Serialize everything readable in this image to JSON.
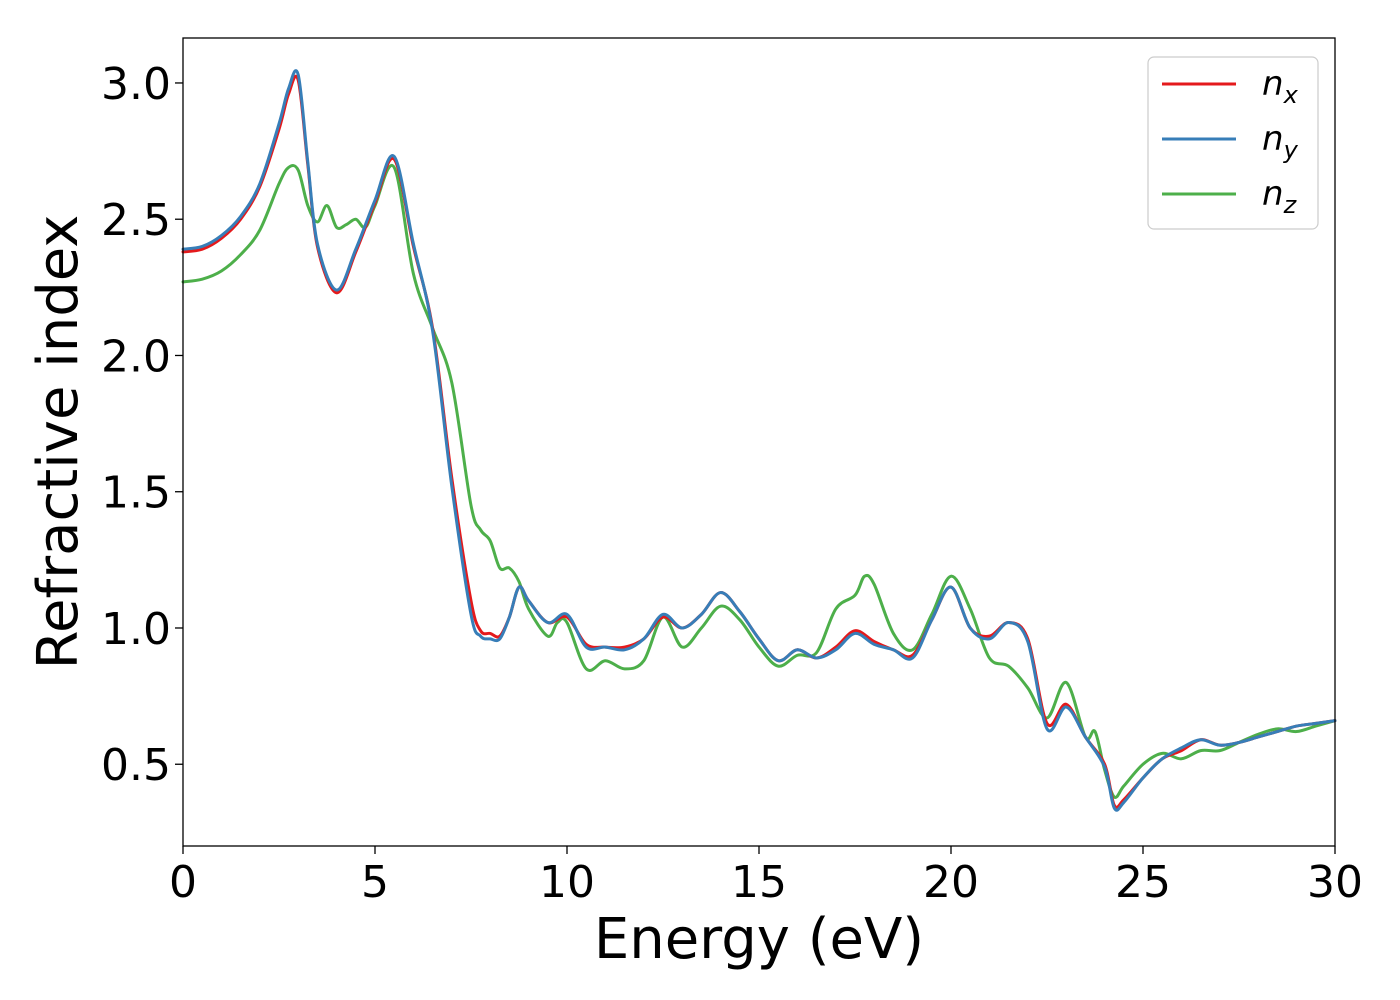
{
  "chart_data": {
    "type": "line",
    "title": "",
    "xlabel": "Energy (eV)",
    "ylabel": "Refractive index",
    "xlim": [
      0,
      30
    ],
    "ylim": [
      0.2,
      3.165
    ],
    "x_ticks": [
      0,
      5,
      10,
      15,
      20,
      25,
      30
    ],
    "y_ticks": [
      0.5,
      1.0,
      1.5,
      2.0,
      2.5,
      3.0
    ],
    "x_tick_labels": [
      "0",
      "5",
      "10",
      "15",
      "20",
      "25",
      "30"
    ],
    "y_tick_labels": [
      "0.5",
      "1.0",
      "1.5",
      "2.0",
      "2.5",
      "3.0"
    ],
    "grid": false,
    "legend": {
      "placement": "top-right"
    },
    "series": [
      {
        "name": "n_x",
        "legend_base": "n",
        "legend_sub": "x",
        "color": "#e41a1c",
        "x": [
          0,
          0.5,
          1,
          1.5,
          2,
          2.5,
          2.75,
          3.0,
          3.25,
          3.5,
          4.0,
          4.5,
          5.0,
          5.5,
          6.0,
          6.5,
          7.0,
          7.5,
          7.75,
          8.0,
          8.25,
          8.5,
          8.75,
          9.0,
          9.5,
          10.0,
          10.5,
          11.0,
          11.5,
          12.0,
          12.5,
          13.0,
          13.5,
          14.0,
          14.5,
          15.0,
          15.5,
          16.0,
          16.5,
          17.0,
          17.5,
          18.0,
          18.5,
          19.0,
          19.5,
          20.0,
          20.5,
          21.0,
          21.5,
          22.0,
          22.5,
          23.0,
          23.5,
          24.0,
          24.25,
          24.5,
          25.0,
          25.5,
          26.0,
          26.5,
          27.0,
          27.5,
          28.0,
          28.5,
          29.0,
          29.5,
          30.0
        ],
        "y": [
          2.38,
          2.39,
          2.43,
          2.5,
          2.62,
          2.83,
          2.96,
          3.01,
          2.7,
          2.4,
          2.23,
          2.38,
          2.56,
          2.72,
          2.4,
          2.1,
          1.55,
          1.1,
          0.99,
          0.98,
          0.97,
          1.04,
          1.15,
          1.1,
          1.02,
          1.04,
          0.94,
          0.93,
          0.93,
          0.96,
          1.04,
          1.0,
          1.05,
          1.13,
          1.06,
          0.96,
          0.88,
          0.92,
          0.89,
          0.93,
          0.99,
          0.95,
          0.92,
          0.9,
          1.03,
          1.15,
          1.0,
          0.97,
          1.02,
          0.96,
          0.65,
          0.72,
          0.6,
          0.5,
          0.35,
          0.37,
          0.45,
          0.52,
          0.55,
          0.59,
          0.57,
          0.58,
          0.6,
          0.62,
          0.64,
          0.65,
          0.66
        ]
      },
      {
        "name": "n_y",
        "legend_base": "n",
        "legend_sub": "y",
        "color": "#377eb8",
        "x": [
          0,
          0.5,
          1,
          1.5,
          2,
          2.5,
          2.75,
          3.0,
          3.25,
          3.5,
          4.0,
          4.5,
          5.0,
          5.5,
          6.0,
          6.5,
          7.0,
          7.5,
          7.75,
          8.0,
          8.25,
          8.5,
          8.75,
          9.0,
          9.5,
          10.0,
          10.5,
          11.0,
          11.5,
          12.0,
          12.5,
          13.0,
          13.5,
          14.0,
          14.5,
          15.0,
          15.5,
          16.0,
          16.5,
          17.0,
          17.5,
          18.0,
          18.5,
          19.0,
          19.5,
          20.0,
          20.5,
          21.0,
          21.5,
          22.0,
          22.5,
          23.0,
          23.5,
          24.0,
          24.25,
          24.5,
          25.0,
          25.5,
          26.0,
          26.5,
          27.0,
          27.5,
          28.0,
          28.5,
          29.0,
          29.5,
          30.0
        ],
        "y": [
          2.39,
          2.4,
          2.44,
          2.51,
          2.63,
          2.85,
          2.98,
          3.03,
          2.71,
          2.41,
          2.24,
          2.39,
          2.57,
          2.73,
          2.41,
          2.09,
          1.52,
          1.05,
          0.97,
          0.96,
          0.96,
          1.04,
          1.15,
          1.1,
          1.02,
          1.05,
          0.93,
          0.93,
          0.92,
          0.96,
          1.05,
          1.0,
          1.05,
          1.13,
          1.06,
          0.96,
          0.88,
          0.92,
          0.89,
          0.92,
          0.98,
          0.94,
          0.92,
          0.89,
          1.03,
          1.15,
          1.0,
          0.96,
          1.02,
          0.95,
          0.63,
          0.71,
          0.6,
          0.49,
          0.34,
          0.36,
          0.45,
          0.52,
          0.56,
          0.59,
          0.57,
          0.58,
          0.6,
          0.62,
          0.64,
          0.65,
          0.66
        ]
      },
      {
        "name": "n_z",
        "legend_base": "n",
        "legend_sub": "z",
        "color": "#4daf4a",
        "x": [
          0,
          0.5,
          1,
          1.5,
          2,
          2.5,
          2.75,
          3.0,
          3.25,
          3.5,
          3.75,
          4.0,
          4.25,
          4.5,
          4.75,
          5.0,
          5.5,
          6.0,
          6.5,
          7.0,
          7.5,
          7.75,
          8.0,
          8.25,
          8.5,
          8.75,
          9.0,
          9.5,
          9.75,
          10.0,
          10.5,
          11.0,
          11.5,
          12.0,
          12.5,
          13.0,
          13.5,
          14.0,
          14.5,
          15.0,
          15.5,
          16.0,
          16.5,
          17.0,
          17.5,
          17.75,
          18.0,
          18.5,
          19.0,
          19.5,
          20.0,
          20.5,
          21.0,
          21.5,
          22.0,
          22.5,
          23.0,
          23.5,
          23.75,
          24.0,
          24.25,
          24.5,
          25.0,
          25.5,
          26.0,
          26.5,
          27.0,
          27.5,
          28.0,
          28.5,
          29.0,
          29.5,
          30.0
        ],
        "y": [
          2.27,
          2.28,
          2.31,
          2.37,
          2.46,
          2.63,
          2.69,
          2.68,
          2.55,
          2.49,
          2.55,
          2.47,
          2.48,
          2.5,
          2.47,
          2.55,
          2.69,
          2.3,
          2.1,
          1.9,
          1.45,
          1.36,
          1.32,
          1.22,
          1.22,
          1.17,
          1.07,
          0.97,
          1.02,
          1.02,
          0.85,
          0.88,
          0.85,
          0.88,
          1.04,
          0.93,
          1.0,
          1.08,
          1.03,
          0.93,
          0.86,
          0.9,
          0.91,
          1.07,
          1.12,
          1.19,
          1.16,
          0.98,
          0.92,
          1.05,
          1.19,
          1.07,
          0.89,
          0.86,
          0.78,
          0.67,
          0.8,
          0.6,
          0.62,
          0.48,
          0.38,
          0.42,
          0.5,
          0.54,
          0.52,
          0.55,
          0.55,
          0.58,
          0.61,
          0.63,
          0.62,
          0.64,
          0.66
        ]
      }
    ]
  }
}
